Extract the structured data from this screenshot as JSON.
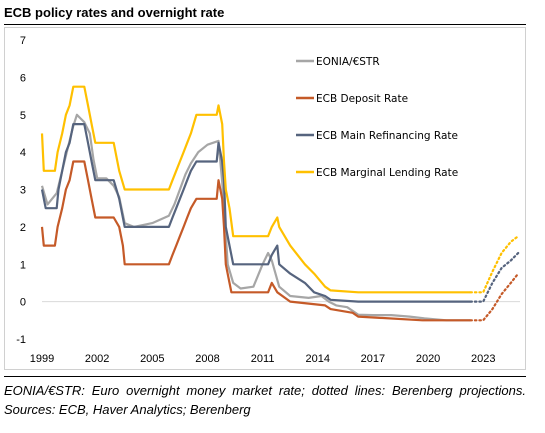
{
  "header": {
    "title": "ECB policy rates and overnight rate"
  },
  "footer": {
    "note": "EONIA/€STR: Euro overnight money market rate; dotted lines: Berenberg projections. Sources: ECB, Haver Analytics; Berenberg"
  },
  "chart_data": {
    "type": "line",
    "title": "ECB policy rates and overnight rate",
    "xlabel": "",
    "ylabel": "",
    "xlim": [
      1999,
      2025
    ],
    "ylim": [
      -1,
      7
    ],
    "x_ticks": [
      1999,
      2002,
      2005,
      2008,
      2011,
      2014,
      2017,
      2020,
      2023
    ],
    "x_tick_labels": [
      "1999",
      "2002",
      "2005",
      "2008",
      "2011",
      "2014",
      "2017",
      "2020",
      "2023"
    ],
    "y_ticks": [
      -1,
      0,
      1,
      2,
      3,
      4,
      5,
      6,
      7
    ],
    "y_tick_labels": [
      "-1",
      "0",
      "1",
      "2",
      "3",
      "4",
      "5",
      "6",
      "7"
    ],
    "grid": false,
    "legend_position": "top-right",
    "projection_start": 2022.3,
    "series": [
      {
        "name": "EONIA/€STR",
        "color": "#a6a6a6",
        "points": [
          [
            1999,
            3.1
          ],
          [
            1999.3,
            2.6
          ],
          [
            1999.8,
            2.9
          ],
          [
            2000.1,
            3.5
          ],
          [
            2000.4,
            4.1
          ],
          [
            2000.7,
            4.7
          ],
          [
            2000.9,
            5.0
          ],
          [
            2001.1,
            4.9
          ],
          [
            2001.3,
            4.8
          ],
          [
            2001.6,
            4.5
          ],
          [
            2001.8,
            3.8
          ],
          [
            2002,
            3.3
          ],
          [
            2002.5,
            3.3
          ],
          [
            2002.9,
            3.1
          ],
          [
            2003.2,
            2.8
          ],
          [
            2003.5,
            2.1
          ],
          [
            2004,
            2.0
          ],
          [
            2005,
            2.1
          ],
          [
            2005.9,
            2.3
          ],
          [
            2006.2,
            2.6
          ],
          [
            2006.5,
            3.0
          ],
          [
            2006.8,
            3.4
          ],
          [
            2007.1,
            3.7
          ],
          [
            2007.5,
            4.0
          ],
          [
            2008,
            4.2
          ],
          [
            2008.6,
            4.3
          ],
          [
            2008.8,
            3.2
          ],
          [
            2009.1,
            1.0
          ],
          [
            2009.4,
            0.5
          ],
          [
            2009.8,
            0.35
          ],
          [
            2010.5,
            0.4
          ],
          [
            2011,
            1.0
          ],
          [
            2011.3,
            1.3
          ],
          [
            2011.5,
            1.1
          ],
          [
            2011.9,
            0.4
          ],
          [
            2012.5,
            0.15
          ],
          [
            2013.5,
            0.1
          ],
          [
            2014.2,
            0.15
          ],
          [
            2014.6,
            0.0
          ],
          [
            2015,
            -0.1
          ],
          [
            2015.6,
            -0.15
          ],
          [
            2016.2,
            -0.35
          ],
          [
            2017,
            -0.36
          ],
          [
            2018,
            -0.36
          ],
          [
            2019,
            -0.4
          ],
          [
            2019.8,
            -0.45
          ],
          [
            2021,
            -0.5
          ],
          [
            2022.3,
            -0.5
          ]
        ]
      },
      {
        "name": "ECB Deposit Rate",
        "color": "#c55a28",
        "points": [
          [
            1999,
            2.0
          ],
          [
            1999.1,
            1.5
          ],
          [
            1999.7,
            1.5
          ],
          [
            1999.85,
            2.0
          ],
          [
            2000.1,
            2.5
          ],
          [
            2000.3,
            3.0
          ],
          [
            2000.5,
            3.25
          ],
          [
            2000.7,
            3.75
          ],
          [
            2001.3,
            3.75
          ],
          [
            2001.5,
            3.25
          ],
          [
            2001.7,
            2.75
          ],
          [
            2001.9,
            2.25
          ],
          [
            2002.9,
            2.25
          ],
          [
            2003.2,
            2.0
          ],
          [
            2003.4,
            1.5
          ],
          [
            2003.5,
            1.0
          ],
          [
            2005.9,
            1.0
          ],
          [
            2006.1,
            1.25
          ],
          [
            2006.3,
            1.5
          ],
          [
            2006.5,
            1.75
          ],
          [
            2006.7,
            2.0
          ],
          [
            2006.9,
            2.25
          ],
          [
            2007.1,
            2.5
          ],
          [
            2007.4,
            2.75
          ],
          [
            2008.5,
            2.75
          ],
          [
            2008.6,
            3.25
          ],
          [
            2008.8,
            2.75
          ],
          [
            2008.9,
            2.0
          ],
          [
            2009.0,
            1.0
          ],
          [
            2009.2,
            0.5
          ],
          [
            2009.3,
            0.25
          ],
          [
            2011.3,
            0.25
          ],
          [
            2011.5,
            0.5
          ],
          [
            2011.8,
            0.25
          ],
          [
            2012.5,
            0.0
          ],
          [
            2014.4,
            -0.1
          ],
          [
            2014.7,
            -0.2
          ],
          [
            2015.9,
            -0.3
          ],
          [
            2016.2,
            -0.4
          ],
          [
            2019.7,
            -0.5
          ],
          [
            2022.3,
            -0.5
          ]
        ],
        "projection": [
          [
            2022.3,
            -0.5
          ],
          [
            2023.0,
            -0.5
          ],
          [
            2023.5,
            -0.2
          ],
          [
            2024.0,
            0.2
          ],
          [
            2024.5,
            0.5
          ],
          [
            2024.9,
            0.75
          ]
        ]
      },
      {
        "name": "ECB Main Refinancing Rate",
        "color": "#56647e",
        "points": [
          [
            1999,
            3.0
          ],
          [
            1999.2,
            2.5
          ],
          [
            1999.8,
            2.5
          ],
          [
            1999.9,
            3.0
          ],
          [
            2000.1,
            3.5
          ],
          [
            2000.3,
            4.0
          ],
          [
            2000.5,
            4.25
          ],
          [
            2000.7,
            4.75
          ],
          [
            2001.3,
            4.75
          ],
          [
            2001.5,
            4.25
          ],
          [
            2001.7,
            3.75
          ],
          [
            2001.9,
            3.25
          ],
          [
            2002.9,
            3.25
          ],
          [
            2003.2,
            2.75
          ],
          [
            2003.5,
            2.0
          ],
          [
            2005.9,
            2.0
          ],
          [
            2006.1,
            2.25
          ],
          [
            2006.3,
            2.5
          ],
          [
            2006.5,
            2.75
          ],
          [
            2006.7,
            3.0
          ],
          [
            2006.9,
            3.25
          ],
          [
            2007.1,
            3.5
          ],
          [
            2007.4,
            3.75
          ],
          [
            2008.5,
            3.75
          ],
          [
            2008.6,
            4.25
          ],
          [
            2008.8,
            3.75
          ],
          [
            2008.9,
            3.25
          ],
          [
            2009.0,
            2.0
          ],
          [
            2009.2,
            1.5
          ],
          [
            2009.4,
            1.0
          ],
          [
            2011.3,
            1.0
          ],
          [
            2011.5,
            1.25
          ],
          [
            2011.8,
            1.5
          ],
          [
            2011.9,
            1.0
          ],
          [
            2012.5,
            0.75
          ],
          [
            2013.3,
            0.5
          ],
          [
            2013.8,
            0.25
          ],
          [
            2014.4,
            0.15
          ],
          [
            2014.7,
            0.05
          ],
          [
            2016.2,
            0.0
          ],
          [
            2022.3,
            0.0
          ]
        ],
        "projection": [
          [
            2022.3,
            0.0
          ],
          [
            2023.0,
            0.0
          ],
          [
            2023.5,
            0.5
          ],
          [
            2024.0,
            0.9
          ],
          [
            2024.5,
            1.1
          ],
          [
            2024.9,
            1.3
          ]
        ]
      },
      {
        "name": "ECB Marginal Lending Rate",
        "color": "#ffc000",
        "points": [
          [
            1999,
            4.5
          ],
          [
            1999.1,
            3.5
          ],
          [
            1999.7,
            3.5
          ],
          [
            1999.85,
            4.0
          ],
          [
            2000.1,
            4.5
          ],
          [
            2000.3,
            5.0
          ],
          [
            2000.5,
            5.25
          ],
          [
            2000.7,
            5.75
          ],
          [
            2001.3,
            5.75
          ],
          [
            2001.5,
            5.25
          ],
          [
            2001.7,
            4.75
          ],
          [
            2001.9,
            4.25
          ],
          [
            2002.9,
            4.25
          ],
          [
            2003.2,
            3.5
          ],
          [
            2003.5,
            3.0
          ],
          [
            2005.9,
            3.0
          ],
          [
            2006.1,
            3.25
          ],
          [
            2006.3,
            3.5
          ],
          [
            2006.5,
            3.75
          ],
          [
            2006.7,
            4.0
          ],
          [
            2006.9,
            4.25
          ],
          [
            2007.1,
            4.5
          ],
          [
            2007.4,
            5.0
          ],
          [
            2008.5,
            5.0
          ],
          [
            2008.6,
            5.25
          ],
          [
            2008.8,
            4.75
          ],
          [
            2008.9,
            3.75
          ],
          [
            2009.0,
            3.0
          ],
          [
            2009.2,
            2.5
          ],
          [
            2009.4,
            1.75
          ],
          [
            2011.3,
            1.75
          ],
          [
            2011.5,
            2.0
          ],
          [
            2011.8,
            2.25
          ],
          [
            2011.9,
            2.0
          ],
          [
            2012.5,
            1.5
          ],
          [
            2013.3,
            1.0
          ],
          [
            2013.8,
            0.75
          ],
          [
            2014.4,
            0.4
          ],
          [
            2014.7,
            0.3
          ],
          [
            2016.2,
            0.25
          ],
          [
            2022.3,
            0.25
          ]
        ],
        "projection": [
          [
            2022.3,
            0.25
          ],
          [
            2023.0,
            0.25
          ],
          [
            2023.5,
            0.8
          ],
          [
            2024.0,
            1.3
          ],
          [
            2024.5,
            1.6
          ],
          [
            2024.9,
            1.75
          ]
        ]
      }
    ]
  }
}
